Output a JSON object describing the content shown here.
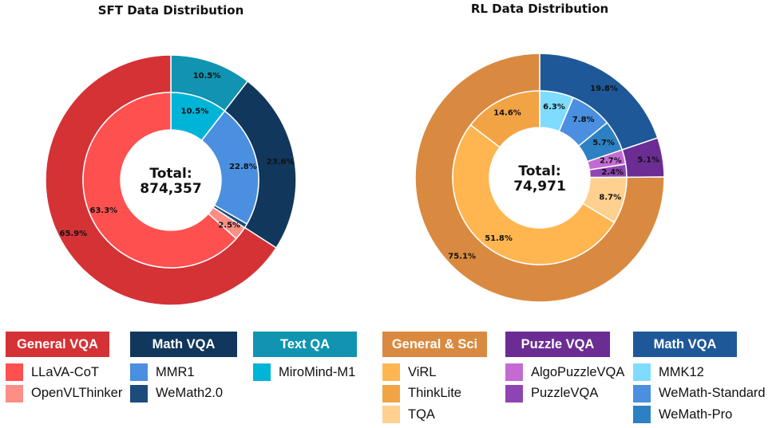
{
  "chart_data": [
    {
      "type": "nested-donut",
      "title": "SFT Data Distribution",
      "total_label": "Total:",
      "total_value": "874,357",
      "outer_ring": [
        {
          "name": "Text QA",
          "value": 10.5,
          "label": "10.5%",
          "color": "#1194b2"
        },
        {
          "name": "Math VQA",
          "value": 23.6,
          "label": "23.6%",
          "color": "#11375d"
        },
        {
          "name": "General VQA",
          "value": 65.9,
          "label": "65.9%",
          "color": "#d53236"
        }
      ],
      "inner_ring": [
        {
          "name": "MiroMind-M1",
          "value": 10.5,
          "label": "10.5%",
          "color": "#00b4d7"
        },
        {
          "name": "MMR1",
          "value": 22.8,
          "label": "22.8%",
          "color": "#4a8fe0"
        },
        {
          "name": "WeMath2.0",
          "value": 0.8,
          "label": "",
          "color": "#1c4b7c"
        },
        {
          "name": "OpenVLThinker",
          "value": 2.5,
          "label": "2.5%",
          "color": "#fc8e86"
        },
        {
          "name": "LLaVA-CoT",
          "value": 63.3,
          "label": "63.3%",
          "color": "#ff5050"
        }
      ]
    },
    {
      "type": "nested-donut",
      "title": "RL Data Distribution",
      "total_label": "Total:",
      "total_value": "74,971",
      "outer_ring": [
        {
          "name": "Math VQA",
          "value": 19.8,
          "label": "19.8%",
          "color": "#1f5898"
        },
        {
          "name": "Puzzle VQA",
          "value": 5.1,
          "label": "5.1%",
          "color": "#6b2d93"
        },
        {
          "name": "General & Sci",
          "value": 75.1,
          "label": "75.1%",
          "color": "#d98a40"
        }
      ],
      "inner_ring": [
        {
          "name": "MMK12",
          "value": 6.3,
          "label": "6.3%",
          "color": "#7fdcff"
        },
        {
          "name": "WeMath-Standard",
          "value": 7.8,
          "label": "7.8%",
          "color": "#4a8fe0"
        },
        {
          "name": "WeMath-Pro",
          "value": 5.7,
          "label": "5.7%",
          "color": "#2d81c2"
        },
        {
          "name": "AlgoPuzzleVQA",
          "value": 2.7,
          "label": "2.7%",
          "color": "#c36bd2"
        },
        {
          "name": "PuzzleVQA",
          "value": 2.4,
          "label": "2.4%",
          "color": "#8e44b2"
        },
        {
          "name": "TQA",
          "value": 8.7,
          "label": "8.7%",
          "color": "#ffd08e"
        },
        {
          "name": "ViRL",
          "value": 51.8,
          "label": "51.8%",
          "color": "#ffb650"
        },
        {
          "name": "ThinkLite",
          "value": 14.6,
          "label": "14.6%",
          "color": "#f2a445"
        }
      ]
    }
  ],
  "legend": [
    {
      "header": "General VQA",
      "color": "#d53236",
      "items": [
        {
          "label": "LLaVA-CoT",
          "color": "#ff5050"
        },
        {
          "label": "OpenVLThinker",
          "color": "#fc8e86"
        }
      ]
    },
    {
      "header": "Math VQA",
      "color": "#11375d",
      "items": [
        {
          "label": "MMR1",
          "color": "#4a8fe0"
        },
        {
          "label": "WeMath2.0",
          "color": "#1c4b7c"
        }
      ]
    },
    {
      "header": "Text QA",
      "color": "#1194b2",
      "items": [
        {
          "label": "MiroMind-M1",
          "color": "#00b4d7"
        }
      ]
    },
    {
      "header": "General & Sci",
      "color": "#d98a40",
      "items": [
        {
          "label": "ViRL",
          "color": "#ffb650"
        },
        {
          "label": "ThinkLite",
          "color": "#f2a445"
        },
        {
          "label": "TQA",
          "color": "#ffd08e"
        }
      ]
    },
    {
      "header": "Puzzle VQA",
      "color": "#6b2d93",
      "items": [
        {
          "label": "AlgoPuzzleVQA",
          "color": "#c36bd2"
        },
        {
          "label": "PuzzleVQA",
          "color": "#8e44b2"
        }
      ]
    },
    {
      "header": "Math VQA",
      "color": "#1f5898",
      "items": [
        {
          "label": "MMK12",
          "color": "#7fdcff"
        },
        {
          "label": "WeMath-Standard",
          "color": "#4a8fe0"
        },
        {
          "label": "WeMath-Pro",
          "color": "#2d81c2"
        }
      ]
    }
  ]
}
